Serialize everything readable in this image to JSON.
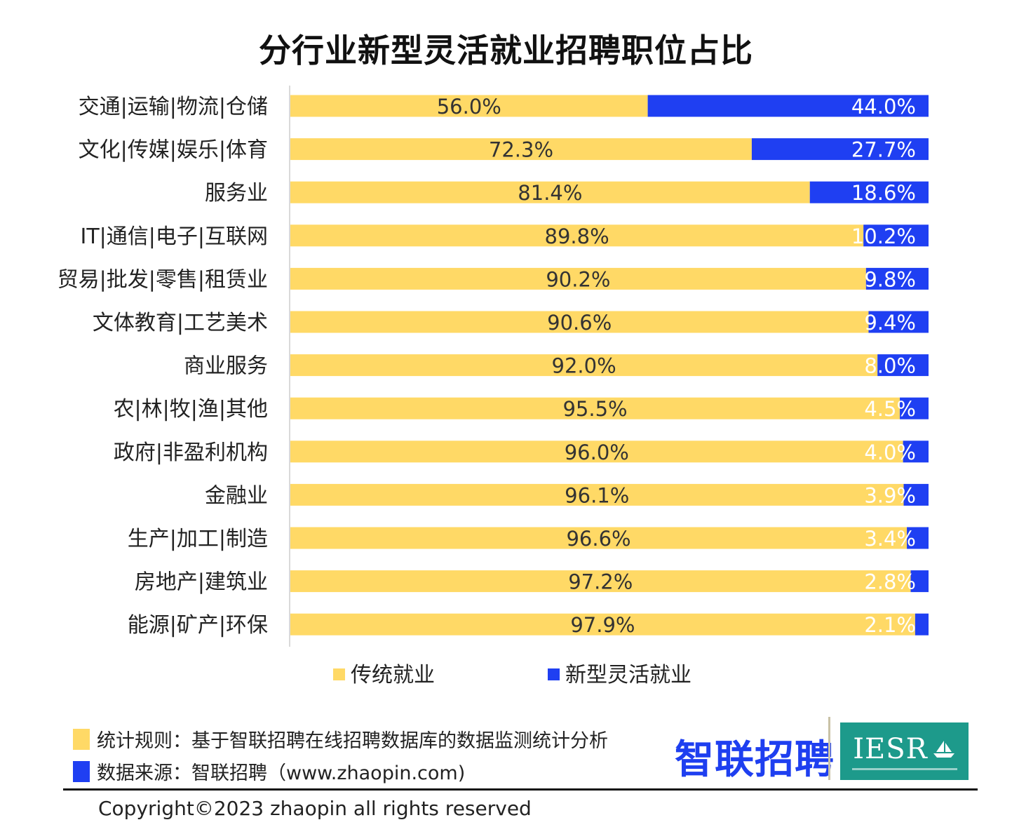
{
  "chart_data": {
    "type": "bar",
    "orientation": "horizontal",
    "stacked": true,
    "title": "分行业新型灵活就业招聘职位占比",
    "categories": [
      "交通|运输|物流|仓储",
      "文化|传媒|娱乐|体育",
      "服务业",
      "IT|通信|电子|互联网",
      "贸易|批发|零售|租赁业",
      "文体教育|工艺美术",
      "商业服务",
      "农|林|牧|渔|其他",
      "政府|非盈利机构",
      "金融业",
      "生产|加工|制造",
      "房地产|建筑业",
      "能源|矿产|环保"
    ],
    "series": [
      {
        "name": "传统就业",
        "color": "#ffd966",
        "values": [
          56.0,
          72.3,
          81.4,
          89.8,
          90.2,
          90.6,
          92.0,
          95.5,
          96.0,
          96.1,
          96.6,
          97.2,
          97.9
        ],
        "labels": [
          "56.0%",
          "72.3%",
          "81.4%",
          "89.8%",
          "90.2%",
          "90.6%",
          "92.0%",
          "95.5%",
          "96.0%",
          "96.1%",
          "96.6%",
          "97.2%",
          "97.9%"
        ]
      },
      {
        "name": "新型灵活就业",
        "color": "#1f3ff2",
        "values": [
          44.0,
          27.7,
          18.6,
          10.2,
          9.8,
          9.4,
          8.0,
          4.5,
          4.0,
          3.9,
          3.4,
          2.8,
          2.1
        ],
        "labels": [
          "44.0%",
          "27.7%",
          "18.6%",
          "10.2%",
          "9.8%",
          "9.4%",
          "8.0%",
          "4.5%",
          "4.0%",
          "3.9%",
          "3.4%",
          "2.8%",
          "2.1%"
        ]
      }
    ],
    "xlim": [
      0,
      100
    ],
    "legend_position": "bottom",
    "grid": false
  },
  "notes": {
    "rule": "统计规则：基于智联招聘在线招聘数据库的数据监测统计分析",
    "source": "数据来源：智联招聘（www.zhaopin.com)"
  },
  "logos": {
    "zhaopin": "智联招聘",
    "iesr": "IESR"
  },
  "copyright": "Copyright©2023 zhaopin all rights reserved",
  "colors": {
    "traditional": "#ffd966",
    "flexible": "#1f3ff2",
    "iesr_bg": "#1d9a8b"
  }
}
